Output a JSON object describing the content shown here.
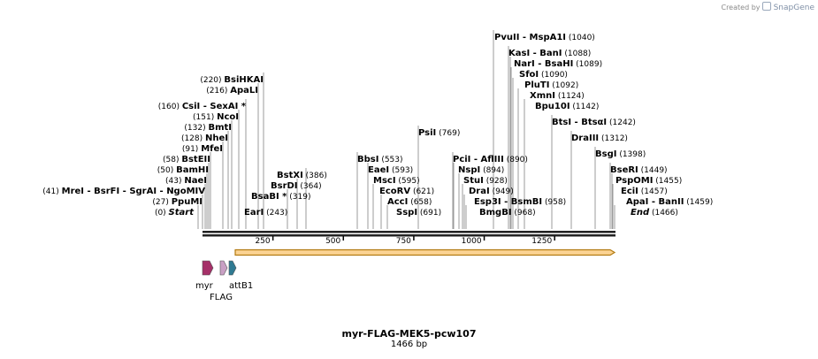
{
  "credit": {
    "prefix": "Created by",
    "brand": "SnapGene"
  },
  "plasmid": {
    "name": "myr-FLAG-MEK5-pcw107",
    "size": "1466 bp",
    "length": 1466
  },
  "map_scale": {
    "ticks": [
      "250",
      "500",
      "750",
      "1000",
      "1250"
    ]
  },
  "colors": {
    "myr": "#a53068",
    "flag": "#c9a0c4",
    "attb1": "#2f7a92",
    "orf_fill": "#fbd393",
    "orf_edge": "#b37b12"
  },
  "features": [
    {
      "name": "myr",
      "label": "myr"
    },
    {
      "name": "FLAG",
      "label": "FLAG"
    },
    {
      "name": "attB1",
      "label": "attB1"
    }
  ],
  "enzymes": [
    {
      "pos": "(1040)",
      "parts": [
        "PvuII",
        "  - MspA1I"
      ]
    },
    {
      "pos": "(1088)",
      "parts": [
        "KasI",
        "  - BanI"
      ]
    },
    {
      "pos": "(1089)",
      "parts": [
        "NarI",
        "  - BsaHI"
      ]
    },
    {
      "pos": "(1090)",
      "parts": [
        "SfoI"
      ]
    },
    {
      "pos": "(1092)",
      "parts": [
        "PluTI"
      ]
    },
    {
      "pos": "(1124)",
      "parts": [
        "XmnI"
      ]
    },
    {
      "pos": "(1142)",
      "parts": [
        "Bpu10I"
      ]
    },
    {
      "pos": "(1242)",
      "parts": [
        "BtsI",
        "  - BtsαI"
      ]
    },
    {
      "pos": "(1312)",
      "parts": [
        "DraIII"
      ]
    },
    {
      "pos": "(1398)",
      "parts": [
        "BsgI"
      ]
    },
    {
      "pos": "(1449)",
      "parts": [
        "BseRI"
      ]
    },
    {
      "pos": "(1455)",
      "parts": [
        "PspOMI"
      ]
    },
    {
      "pos": "(1457)",
      "parts": [
        "EciI"
      ]
    },
    {
      "pos": "(1459)",
      "parts": [
        "ApaI",
        "  - BanII"
      ]
    },
    {
      "pos": "(1466)",
      "parts": [
        "End"
      ]
    },
    {
      "pos": "(769)",
      "parts": [
        "PsiI"
      ]
    },
    {
      "pos": "(553)",
      "parts": [
        "BbsI"
      ]
    },
    {
      "pos": "(593)",
      "parts": [
        "EaeI"
      ]
    },
    {
      "pos": "(595)",
      "parts": [
        "MscI"
      ]
    },
    {
      "pos": "(621)",
      "parts": [
        "EcoRV"
      ]
    },
    {
      "pos": "(658)",
      "parts": [
        "AccI"
      ]
    },
    {
      "pos": "(691)",
      "parts": [
        "SspI"
      ]
    },
    {
      "pos": "(890)",
      "parts": [
        "PciI",
        "  - AflIII"
      ]
    },
    {
      "pos": "(894)",
      "parts": [
        "NspI"
      ]
    },
    {
      "pos": "(928)",
      "parts": [
        "StuI"
      ]
    },
    {
      "pos": "(949)",
      "parts": [
        "DraI"
      ]
    },
    {
      "pos": "(958)",
      "parts": [
        "Esp3I",
        "  - BsmBI"
      ]
    },
    {
      "pos": "(968)",
      "parts": [
        "BmgBI"
      ]
    },
    {
      "pos": "(220)",
      "parts": [
        "BsiHKAI"
      ]
    },
    {
      "pos": "(216)",
      "parts": [
        "ApaLI"
      ]
    },
    {
      "pos": "(160)",
      "parts": [
        "CsiI",
        "  - SexAI *"
      ]
    },
    {
      "pos": "(151)",
      "parts": [
        "NcoI"
      ]
    },
    {
      "pos": "(132)",
      "parts": [
        "BmtI"
      ]
    },
    {
      "pos": "(128)",
      "parts": [
        "NheI"
      ]
    },
    {
      "pos": "(91)",
      "parts": [
        "MfeI"
      ]
    },
    {
      "pos": "(58)",
      "parts": [
        "BstEII"
      ]
    },
    {
      "pos": "(50)",
      "parts": [
        "BamHI"
      ]
    },
    {
      "pos": "(43)",
      "parts": [
        "NaeI"
      ]
    },
    {
      "pos": "(41)",
      "parts": [
        "MreI",
        "  - BsrFI",
        "  - SgrAI",
        "  - NgoMIV"
      ]
    },
    {
      "pos": "(27)",
      "parts": [
        "PpuMI"
      ]
    },
    {
      "pos": "(0)",
      "parts": [
        "Start"
      ]
    },
    {
      "pos": "(386)",
      "parts": [
        "BstXI"
      ]
    },
    {
      "pos": "(364)",
      "parts": [
        "BsrDI"
      ]
    },
    {
      "pos": "(319)",
      "parts": [
        "BsaBI *"
      ]
    },
    {
      "pos": "(243)",
      "parts": [
        "EarI"
      ]
    }
  ]
}
